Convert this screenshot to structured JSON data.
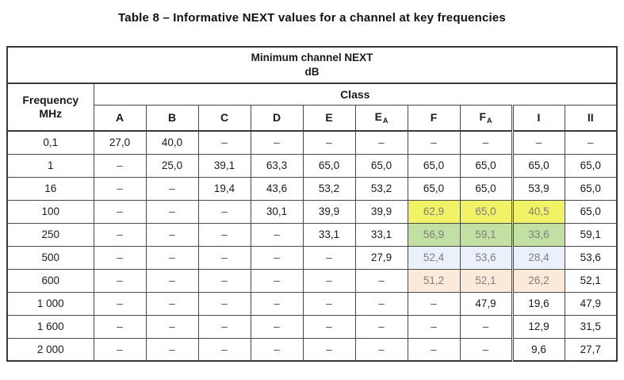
{
  "title": "Table 8 – Informative NEXT values for a channel at key frequencies",
  "table": {
    "main_header": "Minimum channel NEXT",
    "unit": "dB",
    "row_header": {
      "line1": "Frequency",
      "line2": "MHz"
    },
    "class_header": "Class",
    "dash": "–",
    "columns": [
      {
        "base": "A"
      },
      {
        "base": "B"
      },
      {
        "base": "C"
      },
      {
        "base": "D"
      },
      {
        "base": "E"
      },
      {
        "base": "E",
        "sub": "A"
      },
      {
        "base": "F"
      },
      {
        "base": "F",
        "sub": "A"
      },
      {
        "base": "I"
      },
      {
        "base": "II"
      }
    ],
    "rows": [
      {
        "freq": "0,1",
        "cells": [
          "27,0",
          "40,0",
          "–",
          "–",
          "–",
          "–",
          "–",
          "–",
          "–",
          "–"
        ]
      },
      {
        "freq": "1",
        "cells": [
          "–",
          "25,0",
          "39,1",
          "63,3",
          "65,0",
          "65,0",
          "65,0",
          "65,0",
          "65,0",
          "65,0"
        ]
      },
      {
        "freq": "16",
        "cells": [
          "–",
          "–",
          "19,4",
          "43,6",
          "53,2",
          "53,2",
          "65,0",
          "65,0",
          "53,9",
          "65,0"
        ]
      },
      {
        "freq": "100",
        "cells": [
          "–",
          "–",
          "–",
          "30,1",
          "39,9",
          "39,9",
          {
            "v": "62,9",
            "hl": "yellow"
          },
          {
            "v": "65,0",
            "hl": "yellow"
          },
          {
            "v": "40,5",
            "hl": "yellow"
          },
          "65,0"
        ]
      },
      {
        "freq": "250",
        "cells": [
          "–",
          "–",
          "–",
          "–",
          "33,1",
          "33,1",
          {
            "v": "56,9",
            "hl": "green"
          },
          {
            "v": "59,1",
            "hl": "green"
          },
          {
            "v": "33,6",
            "hl": "green"
          },
          "59,1"
        ]
      },
      {
        "freq": "500",
        "cells": [
          "–",
          "–",
          "–",
          "–",
          "–",
          "27,9",
          {
            "v": "52,4",
            "hl": "blue"
          },
          {
            "v": "53,6",
            "hl": "blue"
          },
          {
            "v": "28,4",
            "hl": "blue"
          },
          "53,6"
        ]
      },
      {
        "freq": "600",
        "cells": [
          "–",
          "–",
          "–",
          "–",
          "–",
          "–",
          {
            "v": "51,2",
            "hl": "peach"
          },
          {
            "v": "52,1",
            "hl": "peach"
          },
          {
            "v": "26,2",
            "hl": "peach"
          },
          "52,1"
        ]
      },
      {
        "freq": "1 000",
        "cells": [
          "–",
          "–",
          "–",
          "–",
          "–",
          "–",
          "–",
          "47,9",
          "19,6",
          "47,9"
        ]
      },
      {
        "freq": "1 600",
        "cells": [
          "–",
          "–",
          "–",
          "–",
          "–",
          "–",
          "–",
          "–",
          "12,9",
          "31,5"
        ]
      },
      {
        "freq": "2 000",
        "cells": [
          "–",
          "–",
          "–",
          "–",
          "–",
          "–",
          "–",
          "–",
          "9,6",
          "27,7"
        ]
      }
    ],
    "highlight_colors": {
      "yellow": "#f2f266",
      "green": "#c2e0a2",
      "blue": "#eaf1fa",
      "peach": "#fbe9d9"
    },
    "text_colors": {
      "value": "#1a1a1a",
      "highlighted_value": "#7e7e7e",
      "dash": "#4d4d4d",
      "border": "#4a4a4a"
    }
  }
}
